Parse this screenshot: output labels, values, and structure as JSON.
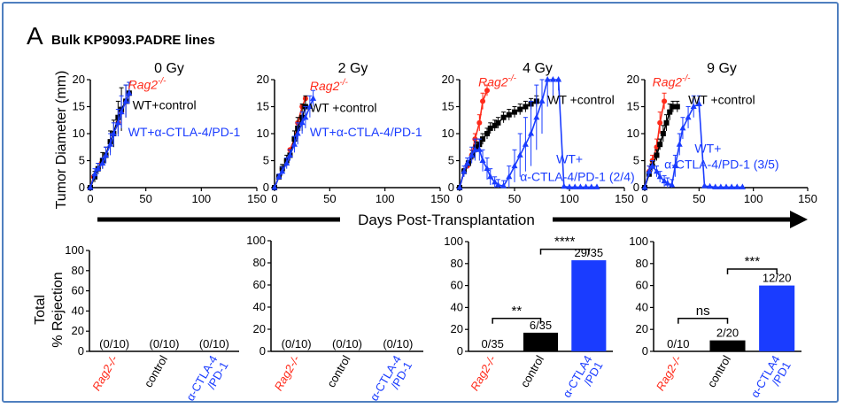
{
  "figure": {
    "panel_letter": "A",
    "panel_title": "Bulk KP9093.PADRE lines",
    "ylabel_top": "Tumor Diameter (mm)",
    "xlabel_top": "Days Post-Transplantation",
    "ylabel_bottom_line1": "Total",
    "ylabel_bottom_line2": "% Rejection",
    "colors": {
      "rag2": "#ff2a1a",
      "wt_control": "#000000",
      "wt_ab": "#1a3cff",
      "frame": "#4f7fbf"
    }
  },
  "chart_data": [
    {
      "type": "line",
      "title": "0 Gy",
      "xlim": [
        0,
        150
      ],
      "ylim": [
        0,
        20
      ],
      "xticks": [
        0,
        50,
        100,
        150
      ],
      "yticks": [
        0,
        5,
        10,
        15,
        20
      ],
      "annotations": [
        {
          "text": "Rag2",
          "sup": "-/-",
          "color": "#ff2a1a",
          "italic": true,
          "x": 34,
          "y": 18.3
        },
        {
          "text": "WT+control",
          "color": "#000000",
          "x": 38,
          "y": 14.5
        },
        {
          "text": "WT+α-CTLA-4/PD-1",
          "color": "#1a3cff",
          "x": 34,
          "y": 9.5
        }
      ],
      "series": [
        {
          "color": "#ff2a1a",
          "marker": "circle",
          "points": [
            [
              0,
              0
            ],
            [
              3,
              2
            ],
            [
              7,
              3.5
            ],
            [
              10,
              4.5
            ],
            [
              14,
              6
            ],
            [
              18,
              8.5
            ],
            [
              21,
              10
            ],
            [
              25,
              12
            ],
            [
              28,
              14
            ],
            [
              32,
              16
            ],
            [
              35,
              17.5
            ]
          ]
        },
        {
          "color": "#000000",
          "marker": "square",
          "points": [
            [
              0,
              0
            ],
            [
              4,
              2
            ],
            [
              7,
              3.5
            ],
            [
              11,
              5
            ],
            [
              14,
              6
            ],
            [
              18,
              8.5
            ],
            [
              21,
              10
            ],
            [
              25,
              13
            ],
            [
              28,
              14.5
            ],
            [
              32,
              16
            ],
            [
              35,
              17.5
            ]
          ],
          "err": [
            0,
            1,
            1,
            1.5,
            1.5,
            2,
            2.5,
            3,
            4,
            3,
            2
          ]
        },
        {
          "color": "#1a3cff",
          "marker": "triangle",
          "points": [
            [
              0,
              0
            ],
            [
              4,
              2.5
            ],
            [
              7,
              3.5
            ],
            [
              11,
              4.5
            ],
            [
              14,
              6
            ],
            [
              18,
              8
            ],
            [
              21,
              10
            ],
            [
              25,
              12
            ],
            [
              28,
              14
            ],
            [
              32,
              16
            ],
            [
              35,
              17.5
            ]
          ],
          "err": [
            0,
            1,
            1,
            1,
            1.5,
            2,
            2,
            2.5,
            3,
            3,
            2
          ]
        }
      ]
    },
    {
      "type": "line",
      "title": "2 Gy",
      "xlim": [
        0,
        150
      ],
      "ylim": [
        0,
        20
      ],
      "xticks": [
        0,
        50,
        100,
        150
      ],
      "yticks": [
        0,
        5,
        10,
        15,
        20
      ],
      "annotations": [
        {
          "text": "Rag2",
          "sup": "-/-",
          "color": "#ff2a1a",
          "italic": true,
          "x": 32,
          "y": 18
        },
        {
          "text": "WT +control",
          "color": "#000000",
          "x": 32,
          "y": 14
        },
        {
          "text": "WT+α-CTLA-4/PD-1",
          "color": "#1a3cff",
          "x": 32,
          "y": 9.5
        }
      ],
      "series": [
        {
          "color": "#ff2a1a",
          "marker": "circle",
          "points": [
            [
              0,
              0
            ],
            [
              4,
              2
            ],
            [
              7,
              3.5
            ],
            [
              11,
              5
            ],
            [
              14,
              7
            ],
            [
              18,
              9
            ],
            [
              21,
              12
            ],
            [
              25,
              15
            ],
            [
              28,
              16.5
            ]
          ]
        },
        {
          "color": "#000000",
          "marker": "square",
          "points": [
            [
              0,
              0
            ],
            [
              4,
              2
            ],
            [
              7,
              3.5
            ],
            [
              11,
              5
            ],
            [
              14,
              6
            ],
            [
              18,
              9
            ],
            [
              21,
              11
            ],
            [
              25,
              13
            ],
            [
              28,
              15
            ]
          ],
          "err": [
            0,
            0.5,
            0.8,
            1,
            1,
            1.5,
            2,
            2.5,
            2
          ]
        },
        {
          "color": "#1a3cff",
          "marker": "triangle",
          "points": [
            [
              0,
              0
            ],
            [
              4,
              2
            ],
            [
              7,
              3
            ],
            [
              11,
              4.5
            ],
            [
              14,
              6
            ],
            [
              18,
              8
            ],
            [
              21,
              10
            ],
            [
              25,
              12
            ],
            [
              28,
              13
            ],
            [
              32,
              15
            ],
            [
              35,
              16.5
            ]
          ],
          "err": [
            0,
            0.5,
            0.8,
            1,
            1,
            1.5,
            2,
            2,
            2,
            2,
            1.5
          ]
        }
      ]
    },
    {
      "type": "line",
      "title": "4 Gy",
      "xlim": [
        0,
        150
      ],
      "ylim": [
        0,
        20
      ],
      "xticks": [
        0,
        50,
        100,
        150
      ],
      "yticks": [
        0,
        5,
        10,
        15,
        20
      ],
      "annotations": [
        {
          "text": "Rag2",
          "sup": "-/-",
          "color": "#ff2a1a",
          "italic": true,
          "x": 17,
          "y": 18.8
        },
        {
          "text": "WT +control",
          "color": "#000000",
          "x": 80,
          "y": 15.5
        },
        {
          "text": "WT+",
          "color": "#1a3cff",
          "x": 88,
          "y": 4.5
        },
        {
          "text": "α-CTLA-4/PD-1 (2/4)",
          "color": "#1a3cff",
          "x": 55,
          "y": 1.2
        }
      ],
      "series": [
        {
          "color": "#ff2a1a",
          "marker": "circle",
          "points": [
            [
              0,
              0
            ],
            [
              4,
              3
            ],
            [
              7,
              4
            ],
            [
              11,
              6
            ],
            [
              14,
              9
            ],
            [
              18,
              12
            ],
            [
              21,
              16
            ],
            [
              25,
              18
            ]
          ],
          "err": [
            0,
            0.5,
            0.5,
            1,
            1,
            1.5,
            1.5,
            1
          ]
        },
        {
          "color": "#000000",
          "marker": "square",
          "points": [
            [
              0,
              0
            ],
            [
              4,
              3
            ],
            [
              8,
              4.5
            ],
            [
              12,
              6
            ],
            [
              15,
              7.5
            ],
            [
              18,
              8
            ],
            [
              21,
              9
            ],
            [
              25,
              10
            ],
            [
              28,
              11
            ],
            [
              32,
              11.5
            ],
            [
              35,
              12
            ],
            [
              40,
              13
            ],
            [
              45,
              13.5
            ],
            [
              50,
              14
            ],
            [
              55,
              14.5
            ],
            [
              60,
              15
            ],
            [
              65,
              15.5
            ],
            [
              70,
              16
            ]
          ],
          "err": [
            0,
            0.5,
            0.5,
            0.8,
            1,
            1,
            1,
            1,
            1,
            1,
            1,
            1,
            1,
            1,
            1,
            1,
            1,
            1
          ]
        },
        {
          "color": "#1a3cff",
          "marker": "triangle",
          "points": [
            [
              0,
              0
            ],
            [
              4,
              3
            ],
            [
              7,
              4.5
            ],
            [
              11,
              6
            ],
            [
              14,
              7
            ],
            [
              18,
              7
            ],
            [
              21,
              5
            ],
            [
              25,
              3.5
            ],
            [
              28,
              2
            ],
            [
              32,
              1
            ],
            [
              35,
              0.5
            ],
            [
              40,
              0.3
            ],
            [
              45,
              2
            ],
            [
              50,
              4
            ],
            [
              55,
              6
            ],
            [
              60,
              8
            ],
            [
              65,
              10
            ],
            [
              70,
              13
            ],
            [
              75,
              16
            ],
            [
              80,
              20
            ],
            [
              85,
              20
            ],
            [
              90,
              20
            ],
            [
              95,
              0.2
            ],
            [
              100,
              0.1
            ],
            [
              105,
              0.1
            ],
            [
              110,
              0.1
            ],
            [
              115,
              0.1
            ],
            [
              120,
              0.1
            ],
            [
              125,
              0.1
            ]
          ],
          "err": [
            0,
            1,
            1,
            1.5,
            2,
            2,
            2,
            2,
            1.5,
            1,
            1,
            1,
            2,
            3,
            4,
            5,
            6,
            6,
            6,
            5,
            3,
            2,
            0,
            0,
            0,
            0,
            0,
            0,
            0
          ]
        }
      ]
    },
    {
      "type": "line",
      "title": "9 Gy",
      "xlim": [
        0,
        150
      ],
      "ylim": [
        0,
        20
      ],
      "xticks": [
        0,
        50,
        100,
        150
      ],
      "yticks": [
        0,
        5,
        10,
        15,
        20
      ],
      "annotations": [
        {
          "text": "Rag2",
          "sup": "-/-",
          "color": "#ff2a1a",
          "italic": true,
          "x": 7,
          "y": 18.8
        },
        {
          "text": "WT +control",
          "color": "#000000",
          "x": 40,
          "y": 15.5
        },
        {
          "text": "WT+",
          "color": "#1a3cff",
          "x": 46,
          "y": 6.5
        },
        {
          "text": "α-CTLA-4/PD-1 (3/5)",
          "color": "#1a3cff",
          "x": 18,
          "y": 3.5
        }
      ],
      "series": [
        {
          "color": "#ff2a1a",
          "marker": "circle",
          "points": [
            [
              0,
              0
            ],
            [
              4,
              3
            ],
            [
              7,
              5
            ],
            [
              11,
              7.5
            ],
            [
              14,
              12
            ],
            [
              18,
              16
            ]
          ],
          "err": [
            0,
            1,
            1,
            1.5,
            2,
            1.5
          ]
        },
        {
          "color": "#000000",
          "marker": "square",
          "points": [
            [
              0,
              0
            ],
            [
              4,
              2.5
            ],
            [
              7,
              4
            ],
            [
              11,
              6
            ],
            [
              14,
              8
            ],
            [
              17,
              10
            ],
            [
              20,
              12
            ],
            [
              23,
              14
            ],
            [
              26,
              15
            ],
            [
              30,
              15
            ]
          ],
          "err": [
            0,
            0.5,
            0.8,
            1,
            1,
            1.5,
            1.5,
            1.5,
            1,
            1
          ]
        },
        {
          "color": "#1a3cff",
          "marker": "triangle",
          "points": [
            [
              0,
              0
            ],
            [
              4,
              3
            ],
            [
              7,
              4
            ],
            [
              11,
              3
            ],
            [
              14,
              2
            ],
            [
              18,
              1.2
            ],
            [
              21,
              0.8
            ],
            [
              25,
              0.5
            ],
            [
              28,
              4
            ],
            [
              32,
              8
            ],
            [
              35,
              11
            ],
            [
              40,
              13
            ],
            [
              45,
              15
            ],
            [
              50,
              15.5
            ],
            [
              55,
              0.3
            ],
            [
              60,
              0.2
            ],
            [
              65,
              0.1
            ],
            [
              70,
              0.1
            ],
            [
              75,
              0.1
            ],
            [
              80,
              0.1
            ],
            [
              85,
              0.1
            ],
            [
              90,
              0.1
            ]
          ],
          "err": [
            0,
            1,
            1,
            1,
            1,
            1,
            1,
            1,
            2,
            2,
            2,
            2,
            2,
            1.5,
            0,
            0,
            0,
            0,
            0,
            0,
            0,
            0
          ]
        }
      ]
    },
    {
      "type": "bar",
      "categories": [
        "Rag2-/-",
        "control",
        "α-CTLA-4 /PD-1"
      ],
      "values": [
        0,
        0,
        0
      ],
      "labels": [
        "(0/10)",
        "(0/10)",
        "(0/10)"
      ],
      "colors": [
        "#ff2a1a",
        "#000000",
        "#1a3cff"
      ],
      "ylim": [
        0,
        100
      ],
      "yticks": [
        0,
        20,
        40,
        60,
        80,
        100
      ],
      "significance": []
    },
    {
      "type": "bar",
      "categories": [
        "Rag2-/-",
        "control",
        "α-CTLA-4 /PD-1"
      ],
      "values": [
        0,
        0,
        0
      ],
      "labels": [
        "(0/10)",
        "(0/10)",
        "(0/10)"
      ],
      "colors": [
        "#ff2a1a",
        "#000000",
        "#1a3cff"
      ],
      "ylim": [
        0,
        100
      ],
      "yticks": [
        0,
        20,
        40,
        60,
        80,
        100
      ],
      "significance": []
    },
    {
      "type": "bar",
      "categories": [
        "Rag2-/-",
        "control",
        "α-CTLA4 /PD1"
      ],
      "values": [
        0,
        17,
        83
      ],
      "labels": [
        "0/35",
        "6/35",
        "29/35"
      ],
      "colors": [
        "#ff2a1a",
        "#000000",
        "#1a3cff"
      ],
      "ylim": [
        0,
        100
      ],
      "yticks": [
        0,
        20,
        40,
        60,
        80,
        100
      ],
      "significance": [
        {
          "from": 0,
          "to": 1,
          "text": "**",
          "level": 30
        },
        {
          "from": 1,
          "to": 2,
          "text": "****",
          "level": 93
        }
      ]
    },
    {
      "type": "bar",
      "categories": [
        "Rag2-/-",
        "control",
        "α-CTLA4 /PD1"
      ],
      "values": [
        0,
        10,
        60
      ],
      "labels": [
        "0/10",
        "2/20",
        "12/20"
      ],
      "colors": [
        "#ff2a1a",
        "#000000",
        "#1a3cff"
      ],
      "ylim": [
        0,
        100
      ],
      "yticks": [
        0,
        20,
        40,
        60,
        80,
        100
      ],
      "significance": [
        {
          "from": 0,
          "to": 1,
          "text": "ns",
          "level": 30
        },
        {
          "from": 1,
          "to": 2,
          "text": "***",
          "level": 75
        }
      ]
    }
  ]
}
